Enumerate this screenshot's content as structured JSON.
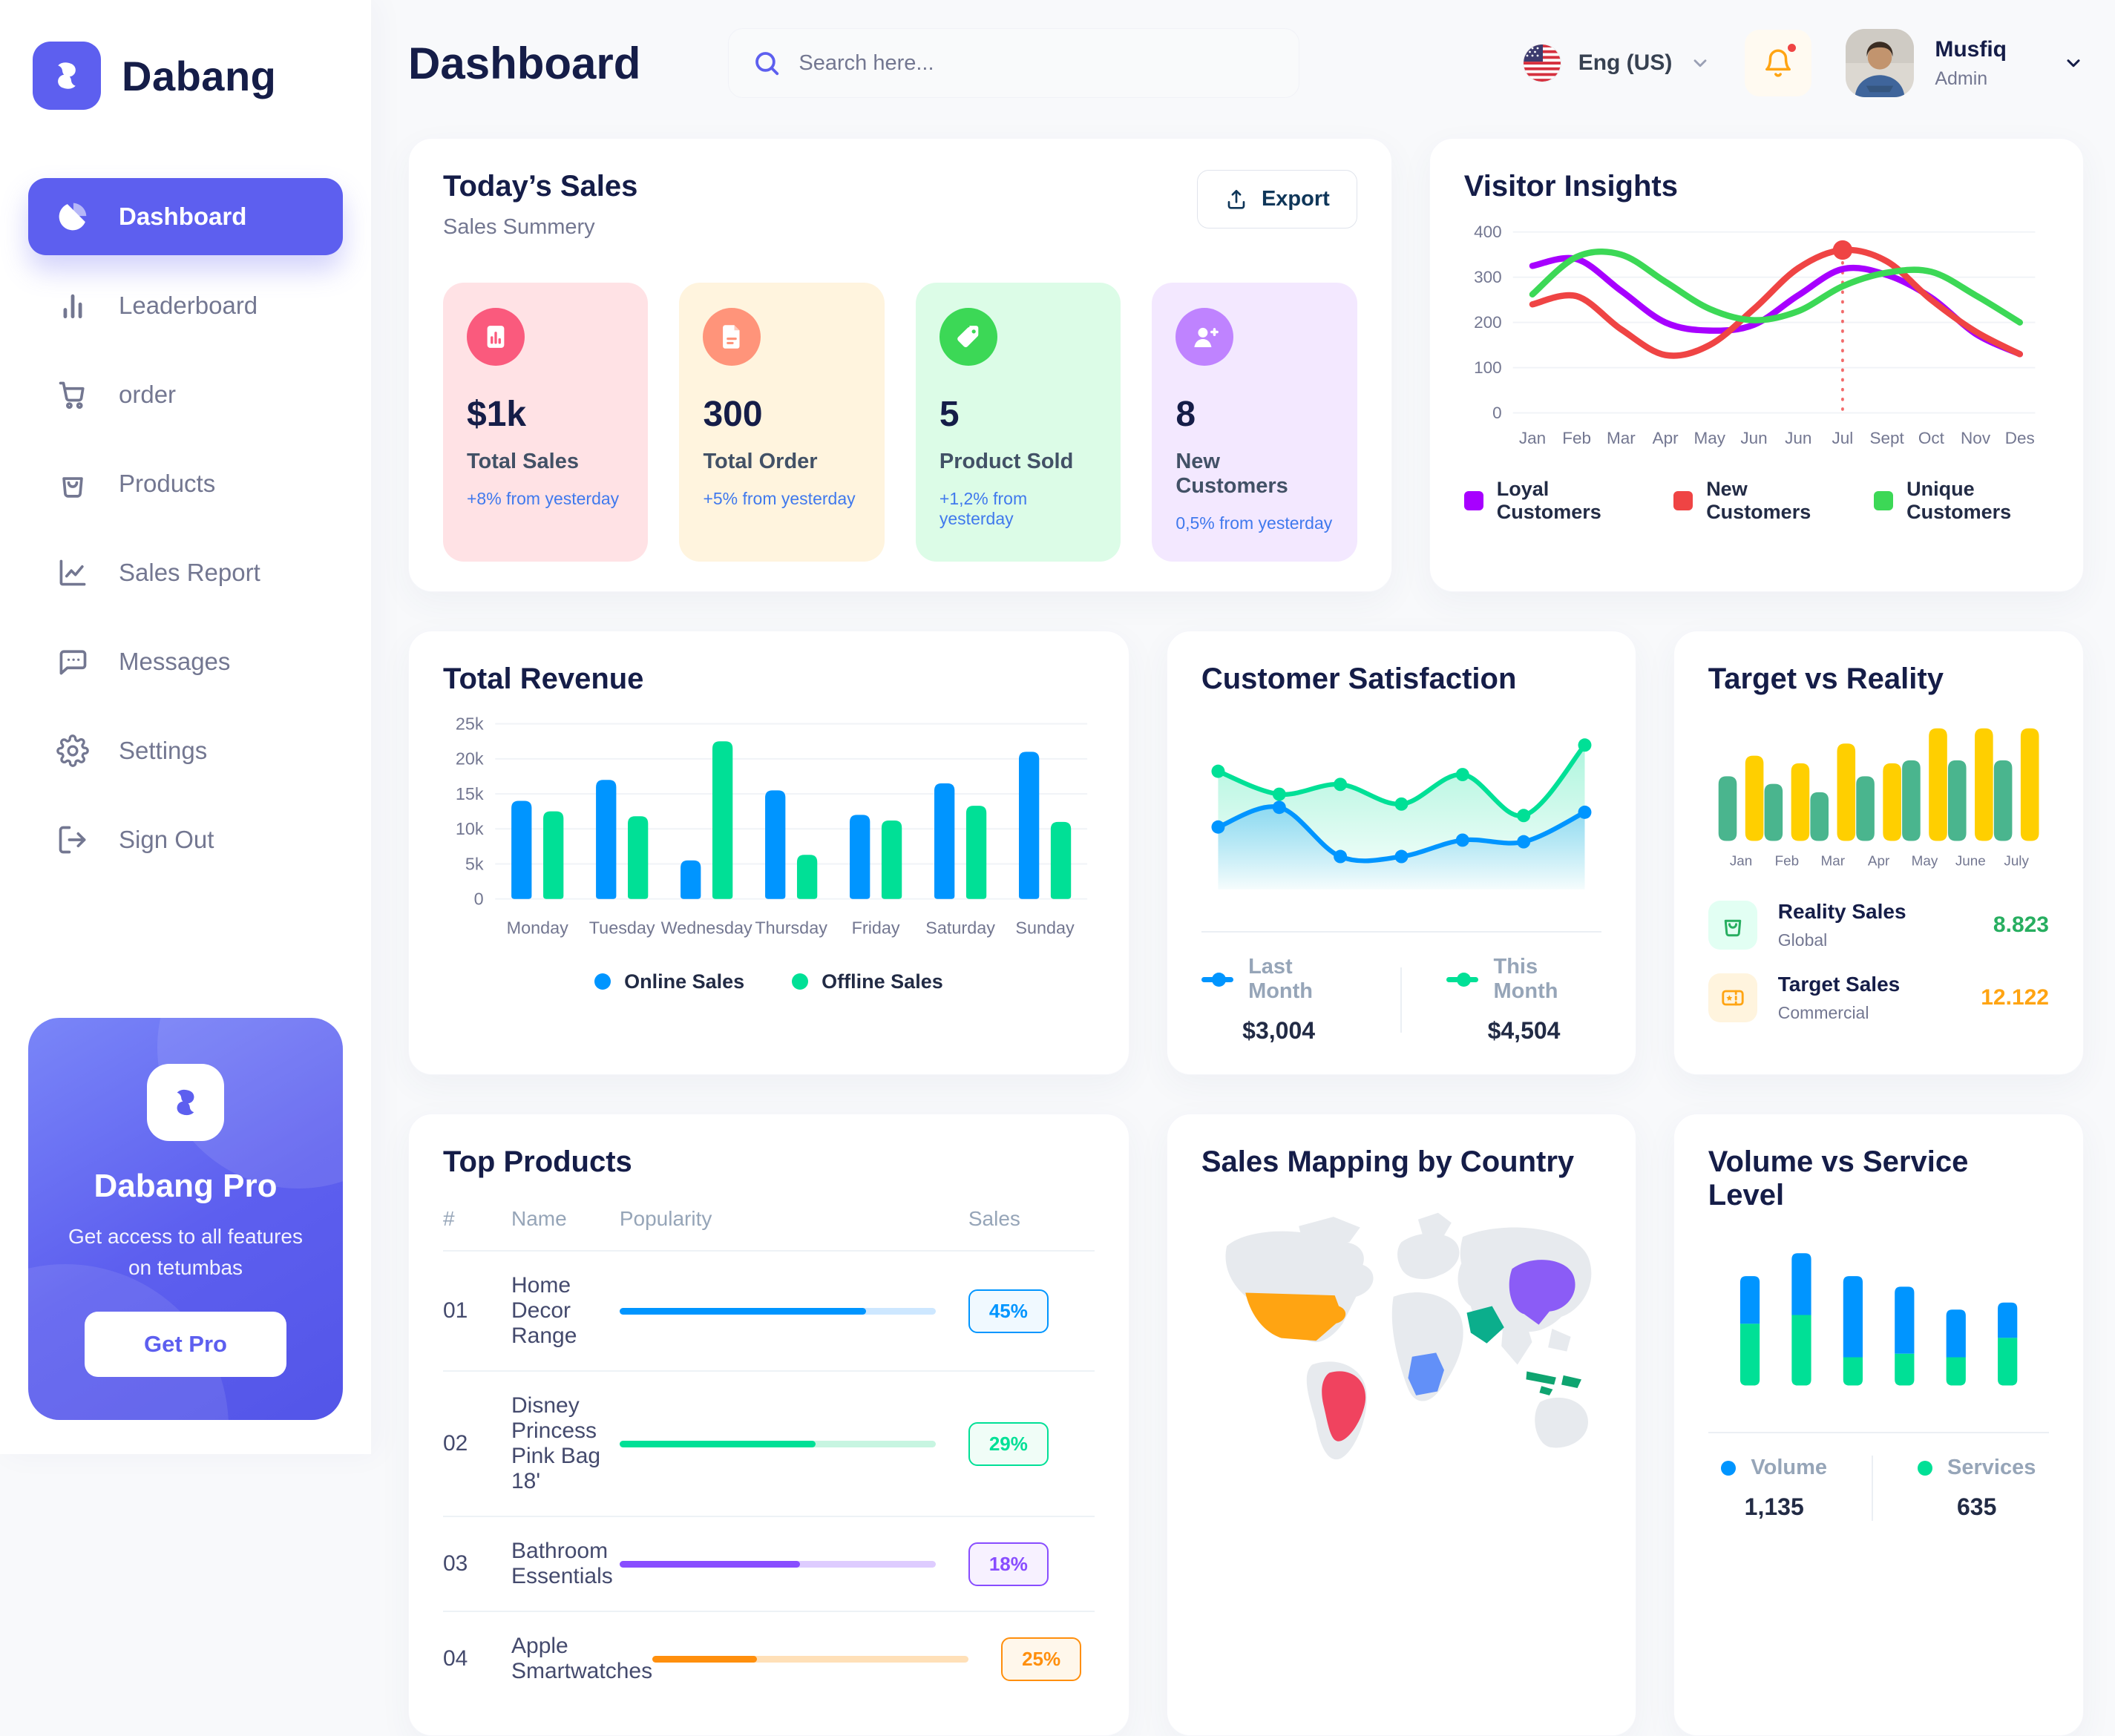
{
  "brand": {
    "name": "Dabang"
  },
  "sidebar": {
    "items": [
      {
        "label": "Dashboard",
        "icon": "pie",
        "active": true
      },
      {
        "label": "Leaderboard",
        "icon": "bars",
        "active": false
      },
      {
        "label": "order",
        "icon": "cart",
        "active": false
      },
      {
        "label": "Products",
        "icon": "bag",
        "active": false
      },
      {
        "label": "Sales Report",
        "icon": "chart-line",
        "active": false
      },
      {
        "label": "Messages",
        "icon": "chat",
        "active": false
      },
      {
        "label": "Settings",
        "icon": "gear",
        "active": false
      },
      {
        "label": "Sign Out",
        "icon": "signout",
        "active": false
      }
    ],
    "pro": {
      "title": "Dabang Pro",
      "description": "Get access to all features on tetumbas",
      "button_label": "Get Pro"
    }
  },
  "header": {
    "title": "Dashboard",
    "search_placeholder": "Search here...",
    "language": "Eng (US)",
    "user": {
      "name": "Musfiq",
      "role": "Admin"
    }
  },
  "todays_sales": {
    "title": "Today’s Sales",
    "subtitle": "Sales Summery",
    "export_label": "Export",
    "stats": [
      {
        "value": "$1k",
        "label": "Total Sales",
        "delta": "+8% from yesterday",
        "icon": "stat-chart",
        "bg": "#FFE2E5",
        "circle": "#FA5A7D"
      },
      {
        "value": "300",
        "label": "Total Order",
        "delta": "+5% from yesterday",
        "icon": "stat-file",
        "bg": "#FFF4DE",
        "circle": "#FF947A"
      },
      {
        "value": "5",
        "label": "Product Sold",
        "delta": "+1,2% from yesterday",
        "icon": "stat-tag",
        "bg": "#DCFCE7",
        "circle": "#3CD856"
      },
      {
        "value": "8",
        "label": "New Customers",
        "delta": "0,5% from yesterday",
        "icon": "stat-user",
        "bg": "#F3E8FF",
        "circle": "#BF83FF"
      }
    ]
  },
  "top_products": {
    "title": "Top Products",
    "columns": [
      "#",
      "Name",
      "Popularity",
      "Sales"
    ],
    "rows": [
      {
        "num": "01",
        "name": "Home Decor Range",
        "popularity_pct": 78,
        "sales": "45%",
        "color": "#0095FF",
        "track": "#CDE7FF",
        "badge_bg": "#F0F9FF"
      },
      {
        "num": "02",
        "name": "Disney Princess Pink Bag 18'",
        "popularity_pct": 62,
        "sales": "29%",
        "color": "#00E096",
        "track": "#C7F5E1",
        "badge_bg": "#F0FDF7"
      },
      {
        "num": "03",
        "name": "Bathroom Essentials",
        "popularity_pct": 57,
        "sales": "18%",
        "color": "#884DFF",
        "track": "#DECCFF",
        "badge_bg": "#F7F1FF"
      },
      {
        "num": "04",
        "name": "Apple Smartwatches",
        "popularity_pct": 33,
        "sales": "25%",
        "color": "#FF8F0D",
        "track": "#FFE0B8",
        "badge_bg": "#FFF7EB"
      }
    ]
  },
  "sales_map": {
    "title": "Sales Mapping by Country",
    "regions": [
      {
        "name": "United States",
        "color": "#FFA412"
      },
      {
        "name": "Brazil",
        "color": "#F0435F"
      },
      {
        "name": "Saudi Arabia",
        "color": "#0BAE8C"
      },
      {
        "name": "DR Congo",
        "color": "#6290F8"
      },
      {
        "name": "China",
        "color": "#8B5CF6"
      },
      {
        "name": "Indonesia",
        "color": "#0FA470"
      }
    ]
  },
  "chart_data": [
    {
      "id": "visitor_insights",
      "type": "line",
      "title": "Visitor Insights",
      "x": [
        "Jan",
        "Feb",
        "Mar",
        "Apr",
        "May",
        "Jun",
        "Jun",
        "Jul",
        "Sept",
        "Oct",
        "Nov",
        "Des"
      ],
      "ylim": [
        0,
        400
      ],
      "yticks": [
        0,
        100,
        200,
        300,
        400
      ],
      "grid": true,
      "legend_position": "bottom",
      "series": [
        {
          "name": "Loyal Customers",
          "color": "#A700FF",
          "values": [
            325,
            340,
            270,
            200,
            182,
            195,
            260,
            318,
            305,
            255,
            175,
            130
          ]
        },
        {
          "name": "New Customers",
          "color": "#EF4444",
          "values": [
            240,
            258,
            185,
            128,
            150,
            230,
            320,
            360,
            335,
            250,
            180,
            130
          ]
        },
        {
          "name": "Unique Customers",
          "color": "#3CD856",
          "values": [
            262,
            345,
            350,
            290,
            230,
            205,
            225,
            280,
            310,
            312,
            260,
            200
          ]
        }
      ],
      "annotation": {
        "series": "New Customers",
        "x_index": 7,
        "value": 360
      }
    },
    {
      "id": "total_revenue",
      "type": "bar",
      "title": "Total Revenue",
      "categories": [
        "Monday",
        "Tuesday",
        "Wednesday",
        "Thursday",
        "Friday",
        "Saturday",
        "Sunday"
      ],
      "ylim": [
        0,
        25000
      ],
      "yticks": [
        0,
        5000,
        10000,
        15000,
        20000,
        25000
      ],
      "ytick_labels": [
        "0",
        "5k",
        "10k",
        "15k",
        "20k",
        "25k"
      ],
      "grid": true,
      "legend_position": "bottom",
      "series": [
        {
          "name": "Online Sales",
          "color": "#0095FF",
          "values": [
            14000,
            17000,
            5500,
            15500,
            12000,
            16500,
            21000
          ]
        },
        {
          "name": "Offline Sales",
          "color": "#00E096",
          "values": [
            12500,
            11800,
            22500,
            6300,
            11200,
            13300,
            11000
          ]
        }
      ]
    },
    {
      "id": "customer_satisfaction",
      "type": "area",
      "title": "Customer Satisfaction",
      "x": [
        1,
        2,
        3,
        4,
        5,
        6,
        7
      ],
      "ylim": [
        0,
        100
      ],
      "grid": false,
      "legend_position": "bottom",
      "series": [
        {
          "name": "This Month",
          "color": "#00E096",
          "total": "$4,504",
          "values": [
            72,
            58,
            64,
            52,
            70,
            45,
            88
          ]
        },
        {
          "name": "Last Month",
          "color": "#0095FF",
          "total": "$3,004",
          "values": [
            38,
            50,
            20,
            20,
            30,
            29,
            47
          ]
        }
      ],
      "legend_order": [
        "Last Month",
        "This Month"
      ]
    },
    {
      "id": "target_vs_reality",
      "type": "bar",
      "title": "Target vs Reality",
      "categories": [
        "Jan",
        "Feb",
        "Mar",
        "Apr",
        "May",
        "June",
        "July"
      ],
      "ylim": [
        0,
        16
      ],
      "grid": false,
      "legend_position": "bottom",
      "series": [
        {
          "name": "Reality Sales",
          "subtitle": "Global",
          "color": "#4AB58E",
          "value_label": "8.823",
          "label_color": "#27AE60",
          "icon_bg": "#E2FFF3",
          "icon": "bag",
          "values": [
            8.5,
            7.5,
            6.4,
            8.5,
            10.6,
            10.6,
            10.6
          ]
        },
        {
          "name": "Target Sales",
          "subtitle": "Commercial",
          "color": "#FFCF00",
          "value_label": "12.122",
          "label_color": "#FFA412",
          "icon_bg": "#FFF4DE",
          "icon": "ticket",
          "values": [
            11.2,
            10.2,
            12.8,
            10.2,
            14.8,
            14.8,
            14.8
          ]
        }
      ]
    },
    {
      "id": "volume_service",
      "type": "stacked-bar",
      "title": "Volume vs Service Level",
      "categories": [
        "1",
        "2",
        "3",
        "4",
        "5",
        "6"
      ],
      "ylim": [
        0,
        80
      ],
      "grid": false,
      "legend_position": "bottom",
      "series": [
        {
          "name": "Volume",
          "color": "#0095FF",
          "total": "1,135",
          "values": [
            27,
            35,
            46,
            38,
            27,
            20
          ]
        },
        {
          "name": "Services",
          "color": "#00E096",
          "total": "635",
          "values": [
            35,
            40,
            16,
            18,
            16,
            27
          ]
        }
      ]
    }
  ]
}
